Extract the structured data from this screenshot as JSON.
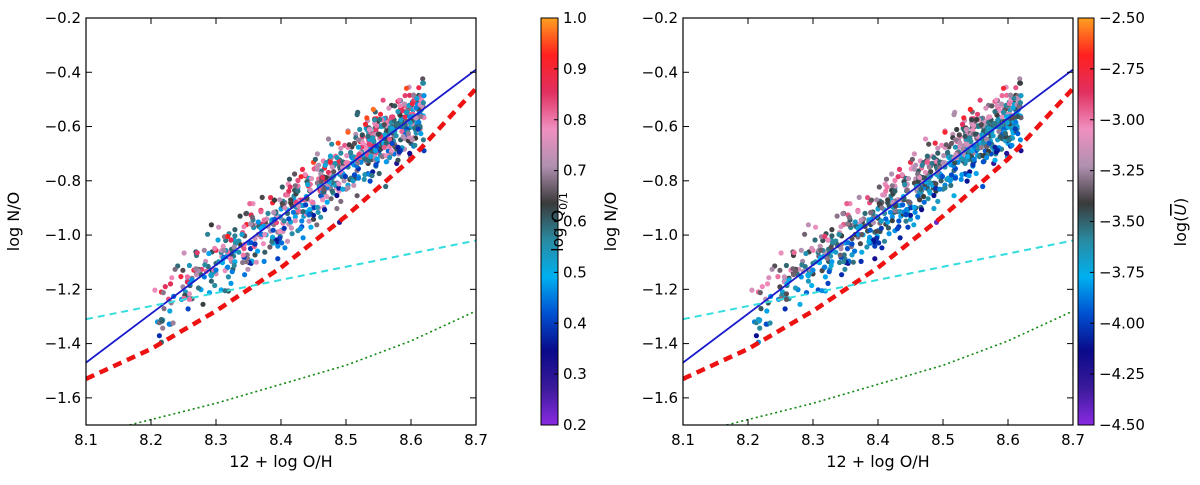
{
  "chart_data": [
    {
      "type": "scatter",
      "xlabel": "12 + log O/H",
      "ylabel": "log N/O",
      "xlim": [
        8.1,
        8.7
      ],
      "ylim": [
        -1.7,
        -0.2
      ],
      "xticks": [
        "8.1",
        "8.2",
        "8.3",
        "8.4",
        "8.5",
        "8.6",
        "8.7"
      ],
      "yticks": [
        "−1.6",
        "−1.4",
        "−1.2",
        "−1.0",
        "−0.8",
        "−0.6",
        "−0.4",
        "−0.2"
      ],
      "xtick_values": [
        8.1,
        8.2,
        8.3,
        8.4,
        8.5,
        8.6,
        8.7
      ],
      "ytick_values": [
        -1.6,
        -1.4,
        -1.2,
        -1.0,
        -0.8,
        -0.6,
        -0.4,
        -0.2
      ],
      "colorbar": {
        "label": "log Q0/1",
        "label_main": "log Q",
        "label_sub": "0/1",
        "range": [
          0.2,
          1.0
        ],
        "ticks": [
          "0.2",
          "0.3",
          "0.4",
          "0.5",
          "0.6",
          "0.7",
          "0.8",
          "0.9",
          "1.0"
        ],
        "tick_values": [
          0.2,
          0.3,
          0.4,
          0.5,
          0.6,
          0.7,
          0.8,
          0.9,
          1.0
        ],
        "stops": [
          "#8a2be2",
          "#3a1a9a",
          "#0a0a8a",
          "#0050d0",
          "#00b0f0",
          "#2a8aa0",
          "#3a3a3a",
          "#b090b0",
          "#f090c0",
          "#e03060",
          "#ff2020",
          "#ffa020"
        ]
      },
      "lines": [
        {
          "style": "solid",
          "color": "#1a1acc",
          "x": [
            8.1,
            8.7
          ],
          "y": [
            -1.47,
            -0.39
          ]
        },
        {
          "style": "thick-dashed",
          "color": "#ee1111",
          "x": [
            8.1,
            8.2,
            8.3,
            8.4,
            8.5,
            8.6,
            8.7
          ],
          "y": [
            -1.53,
            -1.42,
            -1.28,
            -1.12,
            -0.93,
            -0.72,
            -0.46
          ]
        },
        {
          "style": "dashed",
          "color": "#33dddd",
          "x": [
            8.1,
            8.7
          ],
          "y": [
            -1.31,
            -1.02
          ]
        },
        {
          "style": "dotted",
          "color": "#118811",
          "x": [
            8.1,
            8.2,
            8.3,
            8.4,
            8.5,
            8.6,
            8.7
          ],
          "y": [
            -1.74,
            -1.68,
            -1.62,
            -1.55,
            -1.48,
            -1.39,
            -1.28
          ]
        }
      ],
      "points_description_free": true
    },
    {
      "type": "scatter",
      "xlabel": "12 + log O/H",
      "ylabel": "log N/O",
      "xlim": [
        8.1,
        8.7
      ],
      "ylim": [
        -1.7,
        -0.2
      ],
      "xticks": [
        "8.1",
        "8.2",
        "8.3",
        "8.4",
        "8.5",
        "8.6",
        "8.7"
      ],
      "yticks": [
        "−1.6",
        "−1.4",
        "−1.2",
        "−1.0",
        "−0.8",
        "−0.6",
        "−0.4",
        "−0.2"
      ],
      "xtick_values": [
        8.1,
        8.2,
        8.3,
        8.4,
        8.5,
        8.6,
        8.7
      ],
      "ytick_values": [
        -1.6,
        -1.4,
        -1.2,
        -1.0,
        -0.8,
        -0.6,
        -0.4,
        -0.2
      ],
      "colorbar": {
        "label": "log(Ū)",
        "label_main": "log(",
        "label_sub": "",
        "range": [
          -4.5,
          -2.5
        ],
        "ticks": [
          "−4.50",
          "−4.25",
          "−4.00",
          "−3.75",
          "−3.50",
          "−3.25",
          "−3.00",
          "−2.75",
          "−2.50"
        ],
        "tick_values": [
          -4.5,
          -4.25,
          -4.0,
          -3.75,
          -3.5,
          -3.25,
          -3.0,
          -2.75,
          -2.5
        ],
        "stops": [
          "#8a2be2",
          "#3a1a9a",
          "#0a0a8a",
          "#0050d0",
          "#00b0f0",
          "#2a8aa0",
          "#3a3a3a",
          "#b090b0",
          "#f090c0",
          "#e03060",
          "#ff2020",
          "#ffa020"
        ]
      },
      "lines": [
        {
          "style": "solid",
          "color": "#1a1acc",
          "x": [
            8.1,
            8.7
          ],
          "y": [
            -1.47,
            -0.39
          ]
        },
        {
          "style": "thick-dashed",
          "color": "#ee1111",
          "x": [
            8.1,
            8.2,
            8.3,
            8.4,
            8.5,
            8.6,
            8.7
          ],
          "y": [
            -1.53,
            -1.42,
            -1.28,
            -1.12,
            -0.93,
            -0.72,
            -0.46
          ]
        },
        {
          "style": "dashed",
          "color": "#33dddd",
          "x": [
            8.1,
            8.7
          ],
          "y": [
            -1.31,
            -1.02
          ]
        },
        {
          "style": "dotted",
          "color": "#118811",
          "x": [
            8.1,
            8.2,
            8.3,
            8.4,
            8.5,
            8.6,
            8.7
          ],
          "y": [
            -1.74,
            -1.68,
            -1.62,
            -1.55,
            -1.48,
            -1.39,
            -1.28
          ]
        }
      ]
    }
  ]
}
